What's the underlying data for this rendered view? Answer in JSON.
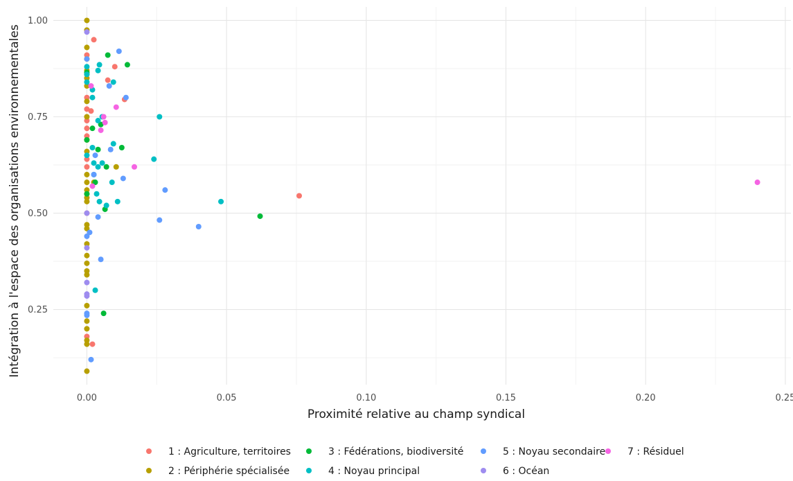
{
  "chart_data": {
    "type": "scatter",
    "xlabel": "Proximité relative au champ syndical",
    "ylabel": "Intégration à l'espace des organisations environnementales",
    "xlim": [
      -0.012,
      0.252
    ],
    "ylim": [
      0.055,
      1.035
    ],
    "x_ticks": [
      0.0,
      0.05,
      0.1,
      0.15,
      0.2,
      0.25
    ],
    "x_tick_labels": [
      "0.00",
      "0.05",
      "0.10",
      "0.15",
      "0.20",
      "0.25"
    ],
    "y_ticks": [
      0.25,
      0.5,
      0.75,
      1.0
    ],
    "y_tick_labels": [
      "0.25",
      "0.50",
      "0.75",
      "1.00"
    ],
    "grid": true,
    "legend_position": "bottom",
    "series": [
      {
        "name": "1 : Agriculture, territoires",
        "color": "#F8766D",
        "points": [
          [
            0.0,
            0.91
          ],
          [
            0.0,
            0.8
          ],
          [
            0.0,
            0.77
          ],
          [
            0.0,
            0.74
          ],
          [
            0.0,
            0.72
          ],
          [
            0.0,
            0.7
          ],
          [
            0.0,
            0.64
          ],
          [
            0.0,
            0.62
          ],
          [
            0.0,
            0.5
          ],
          [
            0.0,
            0.18
          ],
          [
            0.0,
            0.86
          ],
          [
            0.0015,
            0.765
          ],
          [
            0.0025,
            0.95
          ],
          [
            0.0075,
            0.845
          ],
          [
            0.01,
            0.88
          ],
          [
            0.0135,
            0.795
          ],
          [
            0.076,
            0.545
          ],
          [
            0.002,
            0.16
          ]
        ]
      },
      {
        "name": "2 : Périphérie spécialisée",
        "color": "#B79F00",
        "points": [
          [
            0.0,
            1.0
          ],
          [
            0.0,
            0.975
          ],
          [
            0.0,
            0.93
          ],
          [
            0.0,
            0.9
          ],
          [
            0.0,
            0.87
          ],
          [
            0.0,
            0.85
          ],
          [
            0.0,
            0.83
          ],
          [
            0.0,
            0.79
          ],
          [
            0.0,
            0.75
          ],
          [
            0.0,
            0.69
          ],
          [
            0.0,
            0.66
          ],
          [
            0.0,
            0.6
          ],
          [
            0.0,
            0.58
          ],
          [
            0.0,
            0.56
          ],
          [
            0.0,
            0.55
          ],
          [
            0.0,
            0.54
          ],
          [
            0.0,
            0.53
          ],
          [
            0.0,
            0.47
          ],
          [
            0.0,
            0.46
          ],
          [
            0.0,
            0.42
          ],
          [
            0.0,
            0.39
          ],
          [
            0.0,
            0.37
          ],
          [
            0.0,
            0.35
          ],
          [
            0.0,
            0.34
          ],
          [
            0.0,
            0.26
          ],
          [
            0.0,
            0.22
          ],
          [
            0.0,
            0.2
          ],
          [
            0.0,
            0.17
          ],
          [
            0.0,
            0.16
          ],
          [
            0.0,
            0.09
          ],
          [
            0.0025,
            0.58
          ],
          [
            0.0105,
            0.62
          ]
        ]
      },
      {
        "name": "3 : Fédérations, biodiversité",
        "color": "#00BA38",
        "points": [
          [
            0.0,
            0.69
          ],
          [
            0.0,
            0.55
          ],
          [
            0.002,
            0.72
          ],
          [
            0.003,
            0.58
          ],
          [
            0.004,
            0.665
          ],
          [
            0.005,
            0.73
          ],
          [
            0.0065,
            0.51
          ],
          [
            0.007,
            0.62
          ],
          [
            0.0075,
            0.91
          ],
          [
            0.0125,
            0.67
          ],
          [
            0.0145,
            0.885
          ],
          [
            0.006,
            0.24
          ],
          [
            0.062,
            0.492
          ],
          [
            0.0,
            0.865
          ]
        ]
      },
      {
        "name": "4 : Noyau principal",
        "color": "#00BFC4",
        "points": [
          [
            0.0,
            0.88
          ],
          [
            0.0,
            0.86
          ],
          [
            0.0,
            0.84
          ],
          [
            0.0,
            0.65
          ],
          [
            0.002,
            0.82
          ],
          [
            0.002,
            0.8
          ],
          [
            0.002,
            0.67
          ],
          [
            0.0025,
            0.63
          ],
          [
            0.003,
            0.3
          ],
          [
            0.0035,
            0.55
          ],
          [
            0.004,
            0.87
          ],
          [
            0.004,
            0.74
          ],
          [
            0.0045,
            0.885
          ],
          [
            0.0045,
            0.53
          ],
          [
            0.0055,
            0.75
          ],
          [
            0.007,
            0.52
          ],
          [
            0.009,
            0.58
          ],
          [
            0.0095,
            0.84
          ],
          [
            0.0095,
            0.68
          ],
          [
            0.011,
            0.53
          ],
          [
            0.0025,
            0.6
          ],
          [
            0.004,
            0.62
          ],
          [
            0.0055,
            0.63
          ],
          [
            0.024,
            0.64
          ],
          [
            0.026,
            0.75
          ],
          [
            0.048,
            0.53
          ]
        ]
      },
      {
        "name": "5 : Noyau secondaire",
        "color": "#619CFF",
        "points": [
          [
            0.0,
            0.9
          ],
          [
            0.0,
            0.44
          ],
          [
            0.0,
            0.24
          ],
          [
            0.0,
            0.235
          ],
          [
            0.001,
            0.45
          ],
          [
            0.0015,
            0.12
          ],
          [
            0.0025,
            0.6
          ],
          [
            0.003,
            0.65
          ],
          [
            0.004,
            0.49
          ],
          [
            0.005,
            0.38
          ],
          [
            0.008,
            0.83
          ],
          [
            0.0085,
            0.665
          ],
          [
            0.0115,
            0.92
          ],
          [
            0.013,
            0.59
          ],
          [
            0.014,
            0.8
          ],
          [
            0.026,
            0.482
          ],
          [
            0.028,
            0.56
          ],
          [
            0.04,
            0.465
          ]
        ]
      },
      {
        "name": "6 : Océan",
        "color": "#9E8CEF",
        "points": [
          [
            0.0,
            0.97
          ],
          [
            0.0,
            0.5
          ],
          [
            0.0,
            0.41
          ],
          [
            0.0,
            0.32
          ],
          [
            0.0,
            0.29
          ],
          [
            0.0,
            0.285
          ]
        ]
      },
      {
        "name": "7 : Résiduel",
        "color": "#F564E3",
        "points": [
          [
            0.0015,
            0.83
          ],
          [
            0.002,
            0.57
          ],
          [
            0.005,
            0.715
          ],
          [
            0.006,
            0.75
          ],
          [
            0.0065,
            0.735
          ],
          [
            0.0105,
            0.775
          ],
          [
            0.017,
            0.62
          ],
          [
            0.24,
            0.58
          ]
        ]
      }
    ]
  }
}
